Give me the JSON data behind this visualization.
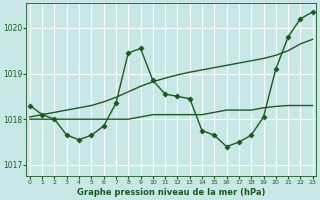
{
  "bg_color": "#c8e8e8",
  "grid_color": "#ffffff",
  "line_color": "#1a5c1a",
  "title": "Graphe pression niveau de la mer (hPa)",
  "xlim": [
    -0.3,
    23.3
  ],
  "ylim": [
    1016.75,
    1020.55
  ],
  "yticks": [
    1017,
    1018,
    1019,
    1020
  ],
  "xticks": [
    0,
    1,
    2,
    3,
    4,
    5,
    6,
    7,
    8,
    9,
    10,
    11,
    12,
    13,
    14,
    15,
    16,
    17,
    18,
    19,
    20,
    21,
    22,
    23
  ],
  "main_x": [
    0,
    1,
    2,
    3,
    4,
    5,
    6,
    7,
    8,
    9,
    10,
    11,
    12,
    13,
    14,
    15,
    16,
    17,
    18,
    19,
    20,
    21,
    22,
    23
  ],
  "main_y": [
    1018.3,
    1018.1,
    1018.0,
    1017.65,
    1017.55,
    1017.65,
    1017.85,
    1018.35,
    1019.45,
    1019.55,
    1018.85,
    1018.55,
    1018.5,
    1018.45,
    1017.75,
    1017.65,
    1017.4,
    1017.5,
    1017.65,
    1018.05,
    1019.1,
    1019.8,
    1020.2,
    1020.35
  ],
  "trend_x": [
    0,
    1,
    2,
    3,
    4,
    5,
    6,
    7,
    8,
    9,
    10,
    11,
    12,
    13,
    14,
    15,
    16,
    17,
    18,
    19,
    20,
    21,
    22,
    23
  ],
  "trend_y": [
    1018.05,
    1018.1,
    1018.15,
    1018.2,
    1018.25,
    1018.3,
    1018.38,
    1018.48,
    1018.6,
    1018.72,
    1018.82,
    1018.9,
    1018.97,
    1019.03,
    1019.08,
    1019.13,
    1019.18,
    1019.23,
    1019.28,
    1019.33,
    1019.4,
    1019.5,
    1019.65,
    1019.75
  ],
  "flat_x": [
    0,
    1,
    2,
    3,
    4,
    5,
    6,
    7,
    8,
    9,
    10,
    11,
    12,
    13,
    14,
    15,
    16,
    17,
    18,
    19,
    20,
    21,
    22,
    23
  ],
  "flat_y": [
    1018.0,
    1018.0,
    1018.0,
    1018.0,
    1018.0,
    1018.0,
    1018.0,
    1018.0,
    1018.0,
    1018.05,
    1018.1,
    1018.1,
    1018.1,
    1018.1,
    1018.1,
    1018.15,
    1018.2,
    1018.2,
    1018.2,
    1018.25,
    1018.28,
    1018.3,
    1018.3,
    1018.3
  ]
}
